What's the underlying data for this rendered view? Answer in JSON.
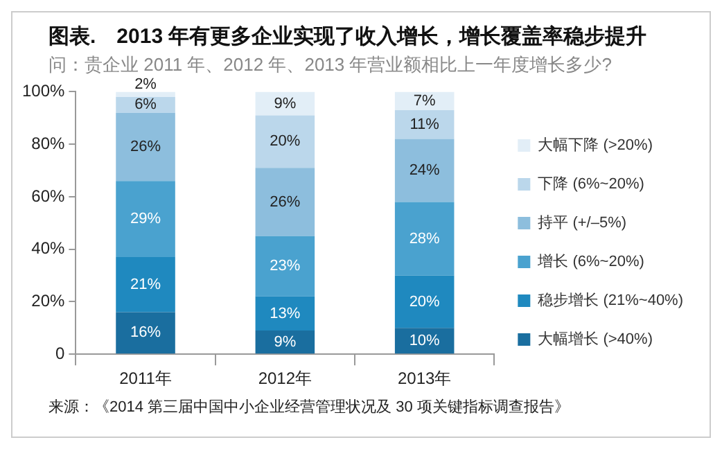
{
  "chart_data": {
    "type": "bar",
    "stacked": true,
    "title": "图表.　2013 年有更多企业实现了收入增长，增长覆盖率稳步提升",
    "subtitle": "问：贵企业 2011 年、2012 年、2013 年营业额相比上一年度增长多少?",
    "categories": [
      "2011年",
      "2012年",
      "2013年"
    ],
    "series": [
      {
        "name": "大幅增长 (>40%)",
        "color": "#1a6e9f",
        "values": [
          16,
          9,
          10
        ],
        "value_labels": [
          "16%",
          "9%",
          "10%"
        ]
      },
      {
        "name": "稳步增长 (21%~40%)",
        "color": "#1f89bf",
        "values": [
          21,
          13,
          20
        ],
        "value_labels": [
          "21%",
          "13%",
          "20%"
        ]
      },
      {
        "name": "增长 (6%~20%)",
        "color": "#4aa2cf",
        "values": [
          29,
          23,
          28
        ],
        "value_labels": [
          "29%",
          "23%",
          "28%"
        ]
      },
      {
        "name": "持平 (+/–5%)",
        "color": "#8dbedd",
        "values": [
          26,
          26,
          24
        ],
        "value_labels": [
          "26%",
          "26%",
          "24%"
        ]
      },
      {
        "name": "下降 (6%~20%)",
        "color": "#bbd7eb",
        "values": [
          6,
          20,
          11
        ],
        "value_labels": [
          "6%",
          "20%",
          "11%"
        ]
      },
      {
        "name": "大幅下降 (>20%)",
        "color": "#e2eef7",
        "values": [
          2,
          9,
          7
        ],
        "value_labels": [
          "2%",
          "9%",
          "7%"
        ]
      }
    ],
    "ylim": [
      0,
      100
    ],
    "yticks": [
      {
        "value": 0,
        "label": "0"
      },
      {
        "value": 20,
        "label": "20%"
      },
      {
        "value": 40,
        "label": "40%"
      },
      {
        "value": 60,
        "label": "60%"
      },
      {
        "value": 80,
        "label": "80%"
      },
      {
        "value": 100,
        "label": "100%"
      }
    ],
    "grid": false,
    "legend": "right",
    "annotations": [
      "来源：《2014 第三届中国中小企业经营管理状况及 30 项关键指标调查报告》"
    ]
  }
}
